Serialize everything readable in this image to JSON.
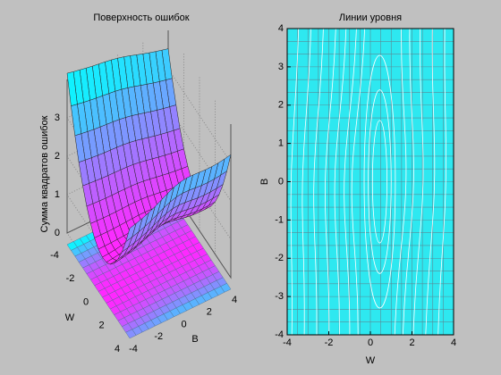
{
  "chart_data": [
    {
      "type": "surface",
      "title": "Поверхность ошибок",
      "zlabel": "Сумма квадратов ошибок",
      "xlabel": "W",
      "ylabel": "B",
      "xlim": [
        -4,
        4
      ],
      "xticks": [
        -4,
        -2,
        0,
        2,
        4
      ],
      "ylim": [
        -4,
        4
      ],
      "yticks": [
        -4,
        -2,
        0,
        2,
        4
      ],
      "zlim": [
        0,
        4
      ],
      "zticks": [
        0,
        1,
        2,
        3
      ],
      "grid": true
    },
    {
      "type": "contour",
      "title": "Линии уровня",
      "xlabel": "W",
      "ylabel": "B",
      "xlim": [
        -4,
        4
      ],
      "xticks": [
        -4,
        -2,
        0,
        2,
        4
      ],
      "ylim": [
        -4,
        4
      ],
      "yticks": [
        -4,
        -3,
        -2,
        -1,
        0,
        1,
        2,
        3,
        4
      ],
      "grid": true
    }
  ]
}
